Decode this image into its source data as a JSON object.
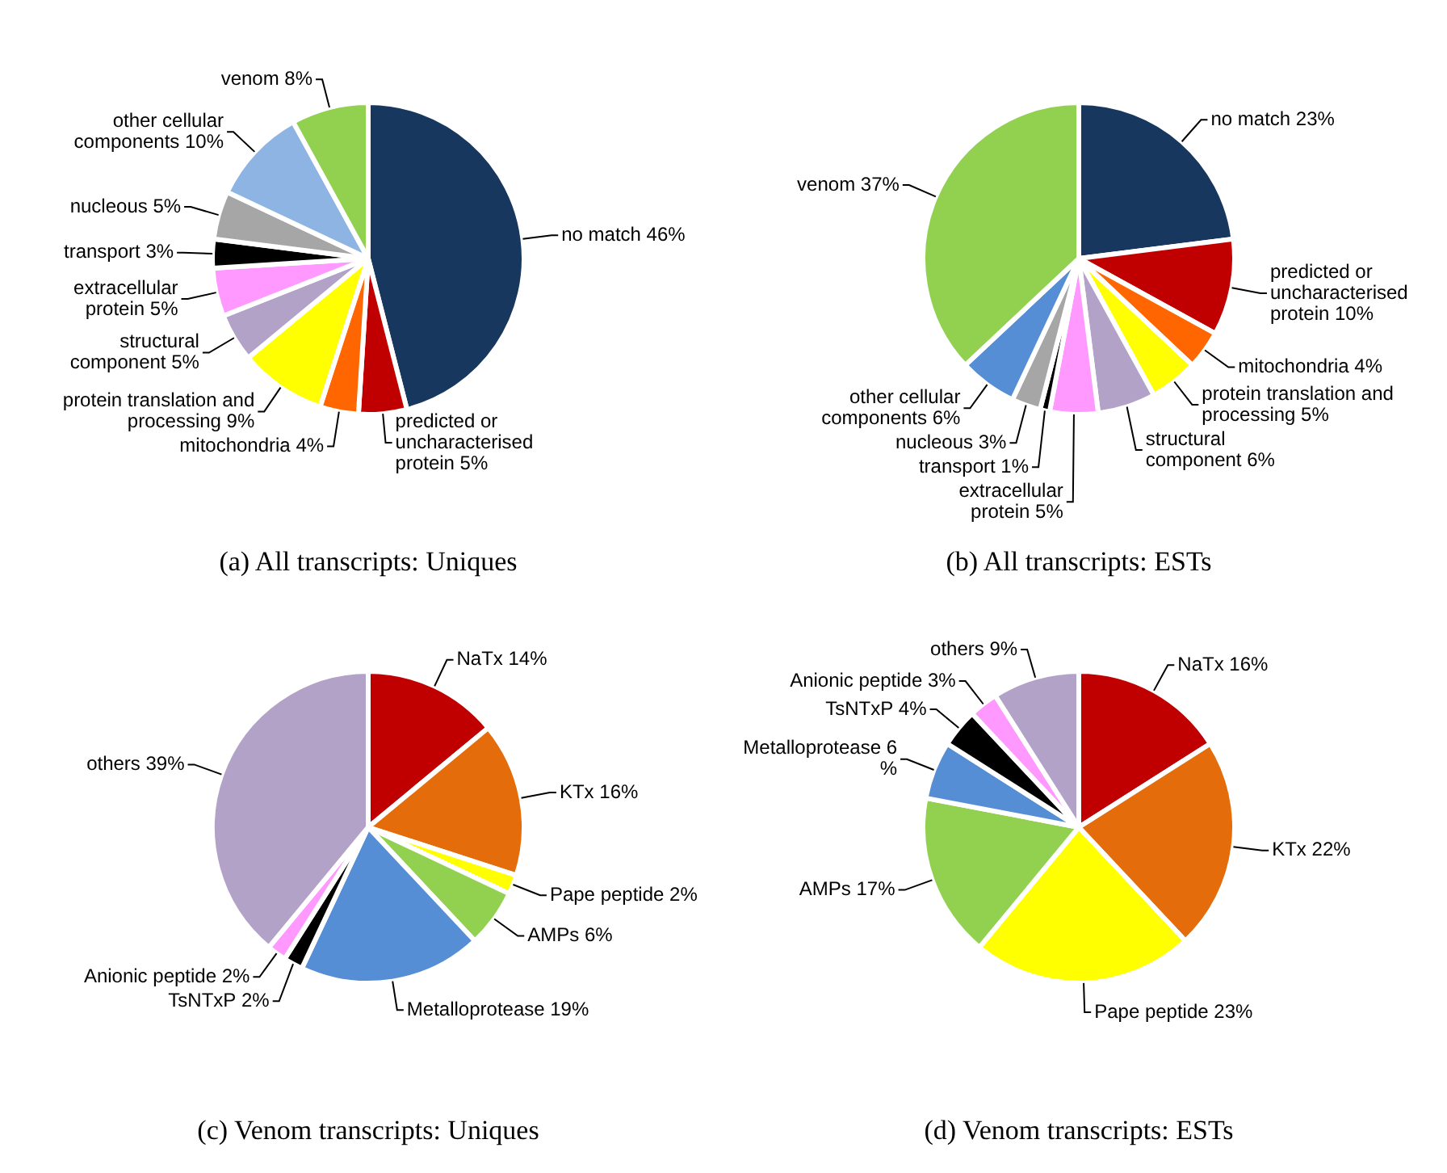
{
  "chart_data": [
    {
      "type": "pie",
      "title": "(a) All transcripts: Uniques",
      "categories": [
        "no match",
        "predicted or uncharacterised protein",
        "mitochondria",
        "protein translation and processing",
        "structural component",
        "extracellular protein",
        "transport",
        "nucleous",
        "other cellular components",
        "venom"
      ],
      "values": [
        46,
        5,
        4,
        9,
        5,
        5,
        3,
        5,
        10,
        8
      ],
      "value_labels": [
        "46%",
        "5%",
        "4%",
        "9%",
        "5%",
        "5%",
        "3%",
        "5%",
        "10%",
        "8%"
      ],
      "colors": [
        "#17375e",
        "#c00000",
        "#ff6600",
        "#ffff00",
        "#b3a2c7",
        "#ff99ff",
        "#000000",
        "#a6a6a6",
        "#8eb4e3",
        "#92d050"
      ]
    },
    {
      "type": "pie",
      "title": "(b) All transcripts: ESTs",
      "categories": [
        "no match",
        "predicted or uncharacterised protein",
        "mitochondria",
        "protein translation and processing",
        "structural component",
        "extracellular protein",
        "transport",
        "nucleous",
        "other cellular components",
        "venom"
      ],
      "values": [
        23,
        10,
        4,
        5,
        6,
        5,
        1,
        3,
        6,
        37
      ],
      "value_labels": [
        "23%",
        "10%",
        "4%",
        "5%",
        "6%",
        "5%",
        "1%",
        "3%",
        "6%",
        "37%"
      ],
      "colors": [
        "#17375e",
        "#c00000",
        "#ff6600",
        "#ffff00",
        "#b3a2c7",
        "#ff99ff",
        "#000000",
        "#a6a6a6",
        "#558ed5",
        "#92d050"
      ]
    },
    {
      "type": "pie",
      "title": "(c) Venom transcripts: Uniques",
      "categories": [
        "NaTx",
        "KTx",
        "Pape peptide",
        "AMPs",
        "Metalloprotease",
        "TsNTxP",
        "Anionic peptide",
        "others"
      ],
      "values": [
        14,
        16,
        2,
        6,
        19,
        2,
        2,
        39
      ],
      "value_labels": [
        "14%",
        "16%",
        "2%",
        "6%",
        "19%",
        "2%",
        "2%",
        "39%"
      ],
      "colors": [
        "#c00000",
        "#e46c0a",
        "#ffff00",
        "#92d050",
        "#558ed5",
        "#000000",
        "#ff99ff",
        "#b3a2c7"
      ]
    },
    {
      "type": "pie",
      "title": "(d) Venom transcripts: ESTs",
      "categories": [
        "NaTx",
        "KTx",
        "Pape peptide",
        "AMPs",
        "Metalloprotease",
        "TsNTxP",
        "Anionic peptide",
        "others"
      ],
      "values": [
        16,
        22,
        23,
        17,
        6,
        4,
        3,
        9
      ],
      "value_labels": [
        "16%",
        "22%",
        "23%",
        "17%",
        "6 %",
        "4%",
        "3%",
        "9%"
      ],
      "colors": [
        "#c00000",
        "#e46c0a",
        "#ffff00",
        "#92d050",
        "#558ed5",
        "#000000",
        "#ff99ff",
        "#b3a2c7"
      ]
    }
  ]
}
